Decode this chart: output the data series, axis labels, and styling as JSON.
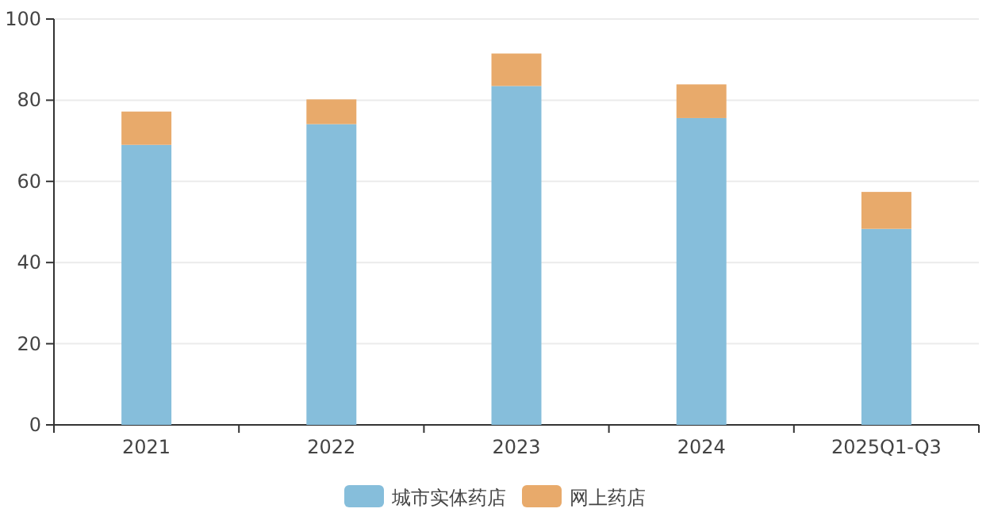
{
  "chart_data": {
    "type": "bar",
    "stacked": true,
    "categories": [
      "2021",
      "2022",
      "2023",
      "2024",
      "2025Q1-Q3"
    ],
    "series": [
      {
        "name": "城市实体药店",
        "color": "#86bedb",
        "values": [
          69.0,
          74.1,
          83.5,
          75.6,
          48.3
        ]
      },
      {
        "name": "网上药店",
        "color": "#e8aa6b",
        "values": [
          8.2,
          6.1,
          8.0,
          8.3,
          9.1
        ]
      }
    ],
    "ylim": [
      0,
      100
    ],
    "yticks": [
      0,
      20,
      40,
      60,
      80,
      100
    ],
    "grid": "y",
    "legend": "bottom"
  }
}
